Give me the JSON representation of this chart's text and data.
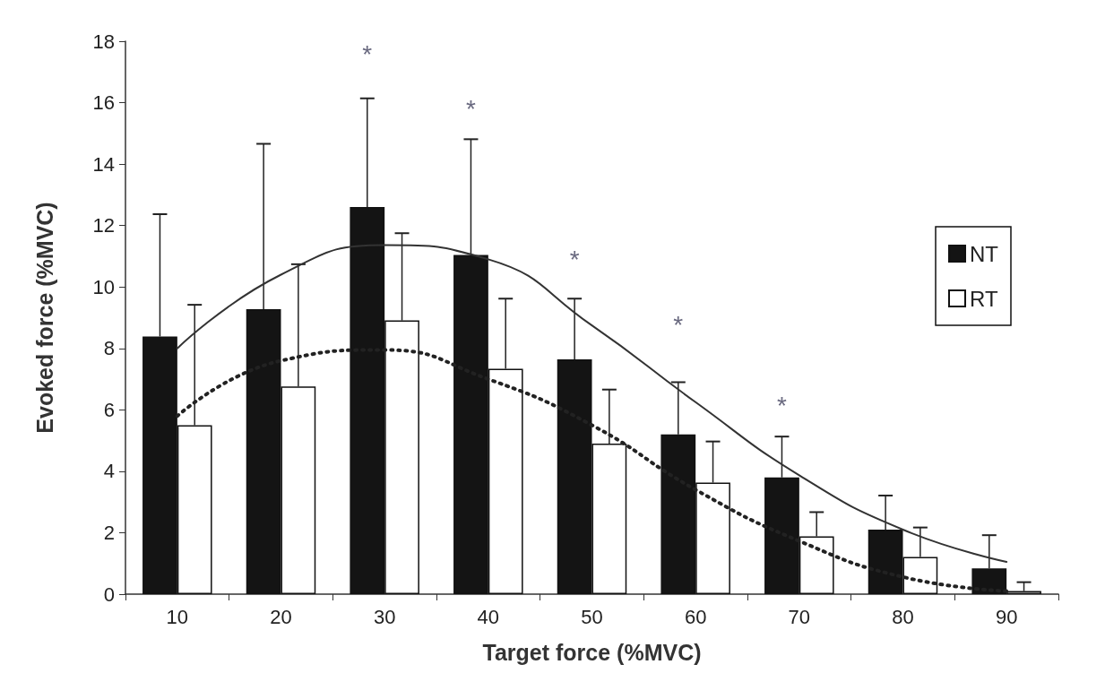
{
  "chart_data": {
    "type": "bar",
    "xlabel": "Target force (%MVC)",
    "ylabel": "Evoked force (%MVC)",
    "categories": [
      "10",
      "20",
      "30",
      "40",
      "50",
      "60",
      "70",
      "80",
      "90"
    ],
    "series": [
      {
        "name": "NT",
        "color": "#141414",
        "values": [
          8.39,
          9.28,
          12.6,
          11.04,
          7.64,
          5.2,
          3.8,
          2.1,
          0.84
        ],
        "errors": [
          [
            8.39,
            12.37
          ],
          [
            9.28,
            14.66
          ],
          [
            12.6,
            16.14
          ],
          [
            11.04,
            14.81
          ],
          [
            7.64,
            9.62
          ],
          [
            5.2,
            6.9
          ],
          [
            3.8,
            5.13
          ],
          [
            2.1,
            3.21
          ],
          [
            0.84,
            1.92
          ]
        ]
      },
      {
        "name": "RT",
        "color": "#ffffff",
        "values": [
          5.5,
          6.76,
          8.91,
          7.34,
          4.9,
          3.63,
          1.88,
          1.21,
          0.1
        ],
        "errors": [
          [
            5.5,
            9.42
          ],
          [
            6.76,
            10.74
          ],
          [
            8.91,
            11.75
          ],
          [
            7.34,
            9.62
          ],
          [
            4.9,
            6.66
          ],
          [
            3.63,
            4.97
          ],
          [
            1.88,
            2.67
          ],
          [
            1.21,
            2.17
          ],
          [
            0.1,
            0.39
          ]
        ]
      },
      {
        "type": "line",
        "color": "#333333",
        "line_style": "solid",
        "marker": "none",
        "values": [
          8.0,
          10.4,
          11.36,
          10.9,
          8.75,
          6.25,
          3.87,
          2.1,
          1.05
        ]
      },
      {
        "type": "line",
        "color": "#222222",
        "line_style": "dotted",
        "marker": "none",
        "values": [
          5.8,
          7.6,
          7.95,
          7.0,
          5.5,
          3.4,
          1.73,
          0.56,
          0.1
        ]
      }
    ],
    "ylim": [
      0,
      18
    ],
    "yticks": [
      0,
      2,
      4,
      6,
      8,
      10,
      12,
      14,
      16,
      18
    ],
    "legend": "right",
    "annotations": [
      "*",
      "*",
      "*",
      "*",
      "*"
    ]
  }
}
